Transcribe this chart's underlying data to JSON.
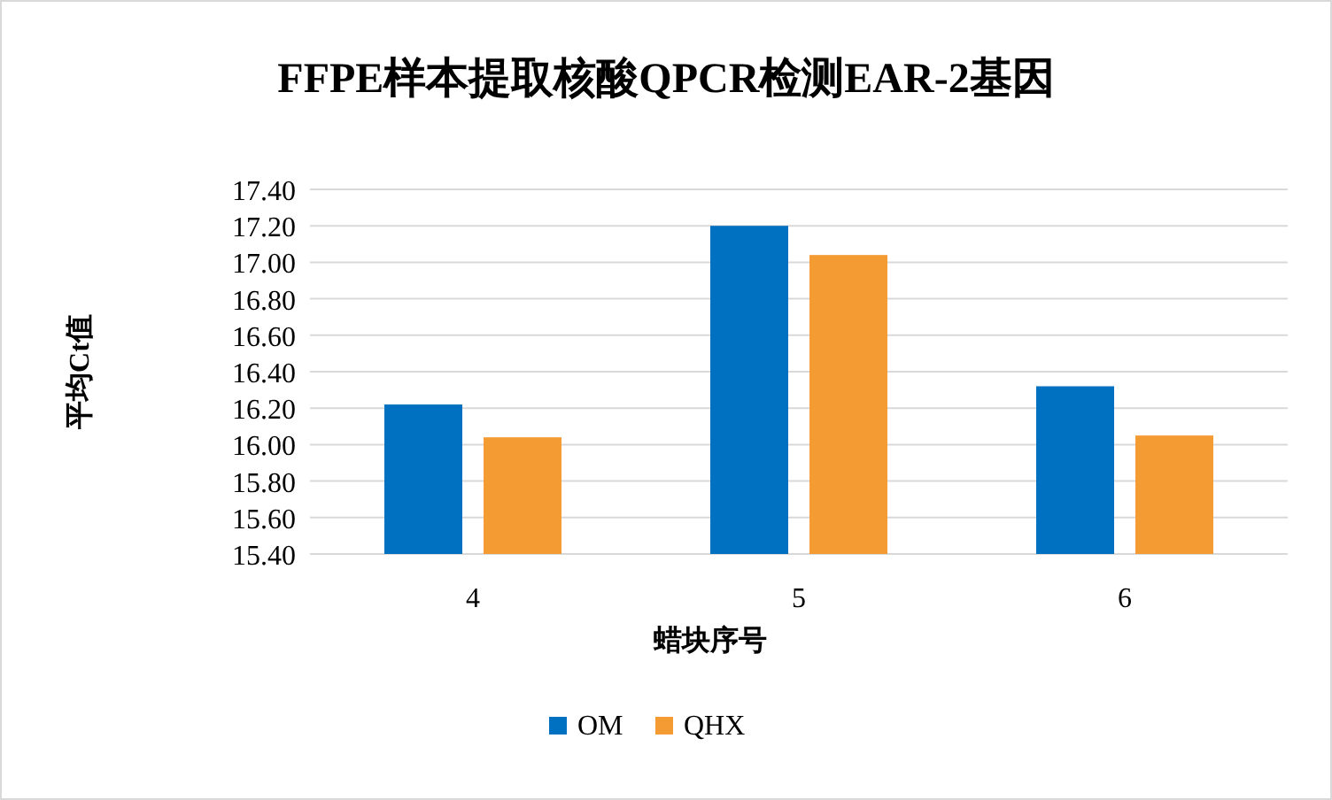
{
  "chart_data": {
    "type": "bar",
    "title": "FFPE样本提取核酸QPCR检测EAR-2基因",
    "xlabel": "蜡块序号",
    "ylabel": "平均Ct值",
    "categories": [
      "4",
      "5",
      "6"
    ],
    "series": [
      {
        "name": "OM",
        "color": "#0070c0",
        "values": [
          16.22,
          17.2,
          16.32
        ]
      },
      {
        "name": "QHX",
        "color": "#f59b33",
        "values": [
          16.04,
          17.04,
          16.05
        ]
      }
    ],
    "ylim": [
      15.4,
      17.4
    ],
    "yticks": [
      {
        "value": 15.4,
        "label": "15.40"
      },
      {
        "value": 15.6,
        "label": "15.60"
      },
      {
        "value": 15.8,
        "label": "15.80"
      },
      {
        "value": 16.0,
        "label": "16.00"
      },
      {
        "value": 16.2,
        "label": "16.20"
      },
      {
        "value": 16.4,
        "label": "16.40"
      },
      {
        "value": 16.6,
        "label": "16.60"
      },
      {
        "value": 16.8,
        "label": "16.80"
      },
      {
        "value": 17.0,
        "label": "17.00"
      },
      {
        "value": 17.2,
        "label": "17.20"
      },
      {
        "value": 17.4,
        "label": "17.40"
      }
    ],
    "grid": "y",
    "legend": "bottom"
  }
}
